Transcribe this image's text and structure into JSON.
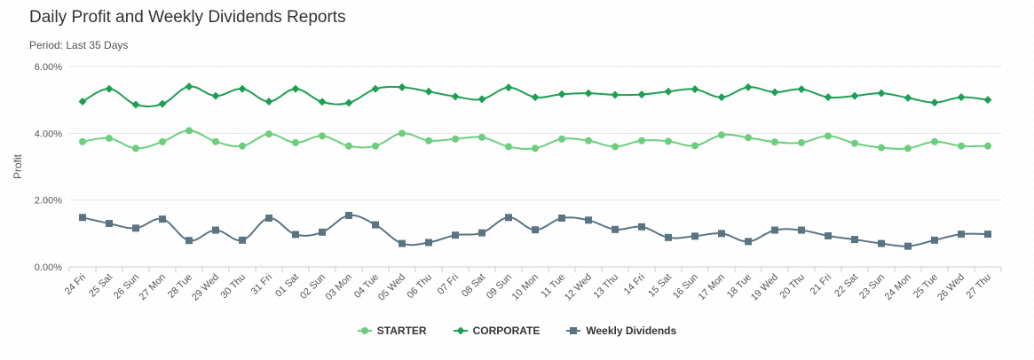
{
  "header": {
    "title": "Daily Profit and Weekly Dividends Reports",
    "subtitle": "Period: Last 35 Days"
  },
  "chart_data": {
    "type": "line",
    "ylabel": "Profit",
    "ylim": [
      0,
      6
    ],
    "yticks": [
      {
        "value": 0,
        "label": "0.00%"
      },
      {
        "value": 2,
        "label": "2.00%"
      },
      {
        "value": 4,
        "label": "4.00%"
      },
      {
        "value": 6,
        "label": "6.00%"
      }
    ],
    "grid": true,
    "legend": "bottom-center",
    "categories": [
      "24 Fri",
      "25 Sat",
      "26 Sun",
      "27 Mon",
      "28 Tue",
      "29 Wed",
      "30 Thu",
      "31 Fri",
      "01 Sat",
      "02 Sun",
      "03 Mon",
      "04 Tue",
      "05 Wed",
      "06 Thu",
      "07 Fri",
      "08 Sat",
      "09 Sun",
      "10 Mon",
      "11 Tue",
      "12 Wed",
      "13 Thu",
      "14 Fri",
      "15 Sat",
      "16 Sun",
      "17 Mon",
      "18 Tue",
      "19 Wed",
      "20 Thu",
      "21 Fri",
      "22 Sat",
      "23 Sun",
      "24 Mon",
      "25 Tue",
      "26 Wed",
      "27 Thu"
    ],
    "series": [
      {
        "name": "STARTER",
        "color": "#6cce7c",
        "marker": "circle",
        "values": [
          3.75,
          3.85,
          3.55,
          3.75,
          4.08,
          3.75,
          3.62,
          3.98,
          3.72,
          3.92,
          3.62,
          3.62,
          4.0,
          3.78,
          3.83,
          3.88,
          3.6,
          3.55,
          3.83,
          3.78,
          3.6,
          3.78,
          3.76,
          3.63,
          3.95,
          3.87,
          3.74,
          3.72,
          3.92,
          3.7,
          3.57,
          3.55,
          3.75,
          3.62,
          3.62
        ]
      },
      {
        "name": "CORPORATE",
        "color": "#1e9e54",
        "marker": "diamond",
        "values": [
          4.95,
          5.33,
          4.86,
          4.88,
          5.4,
          5.12,
          5.33,
          4.95,
          5.33,
          4.94,
          4.91,
          5.33,
          5.38,
          5.25,
          5.1,
          5.02,
          5.37,
          5.08,
          5.17,
          5.2,
          5.15,
          5.16,
          5.25,
          5.32,
          5.08,
          5.38,
          5.23,
          5.32,
          5.08,
          5.12,
          5.2,
          5.06,
          4.92,
          5.08,
          5.0
        ]
      },
      {
        "name": "Weekly Dividends",
        "color": "#5a7482",
        "marker": "square",
        "values": [
          1.48,
          1.3,
          1.16,
          1.43,
          0.79,
          1.1,
          0.8,
          1.46,
          0.97,
          1.04,
          1.54,
          1.26,
          0.7,
          0.73,
          0.95,
          1.02,
          1.48,
          1.11,
          1.46,
          1.4,
          1.12,
          1.2,
          0.88,
          0.92,
          1.0,
          0.76,
          1.1,
          1.1,
          0.93,
          0.82,
          0.7,
          0.62,
          0.8,
          0.98,
          0.98
        ]
      }
    ]
  }
}
